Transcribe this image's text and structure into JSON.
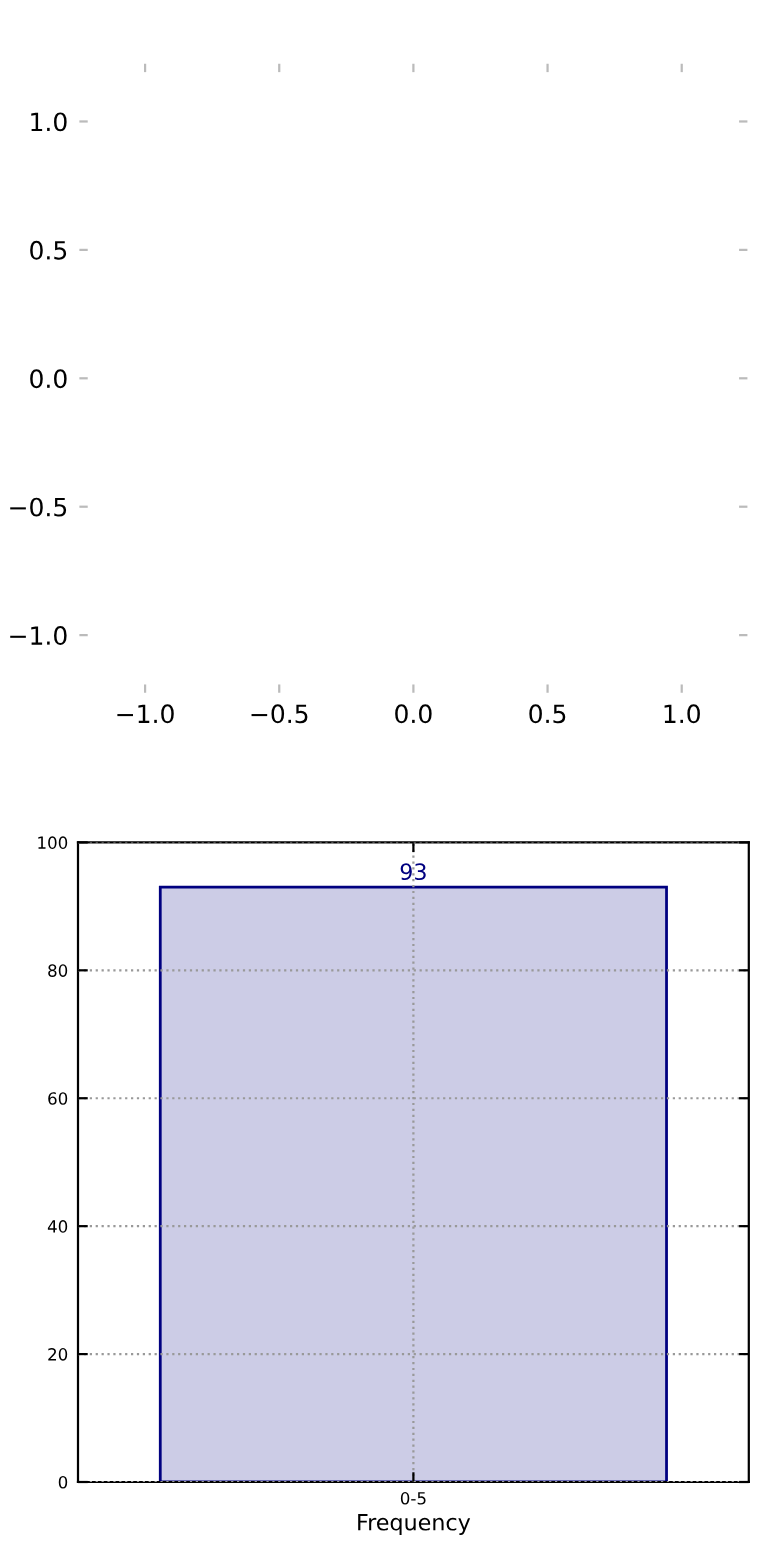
{
  "chart_data": [
    {
      "type": "scatter",
      "xlim": [
        -1.25,
        1.25
      ],
      "ylim": [
        -1.23,
        1.23
      ],
      "xticks": [
        {
          "value": -1.0,
          "label": "−1.0"
        },
        {
          "value": -0.5,
          "label": "−0.5"
        },
        {
          "value": 0.0,
          "label": "0.0"
        },
        {
          "value": 0.5,
          "label": "0.5"
        },
        {
          "value": 1.0,
          "label": "1.0"
        }
      ],
      "yticks": [
        {
          "value": -1.0,
          "label": "−1.0"
        },
        {
          "value": -0.5,
          "label": "−0.5"
        },
        {
          "value": 0.0,
          "label": "0.0"
        },
        {
          "value": 0.5,
          "label": "0.5"
        },
        {
          "value": 1.0,
          "label": "1.0"
        }
      ]
    },
    {
      "type": "bar",
      "categories": [
        "0-5"
      ],
      "values": [
        93
      ],
      "color": "#ccccE6",
      "xlabel": "Frequency",
      "ylim": [
        0,
        100
      ],
      "yticks": [
        0,
        20,
        40,
        60,
        80,
        100
      ],
      "grid": true,
      "data_labels": true
    }
  ]
}
